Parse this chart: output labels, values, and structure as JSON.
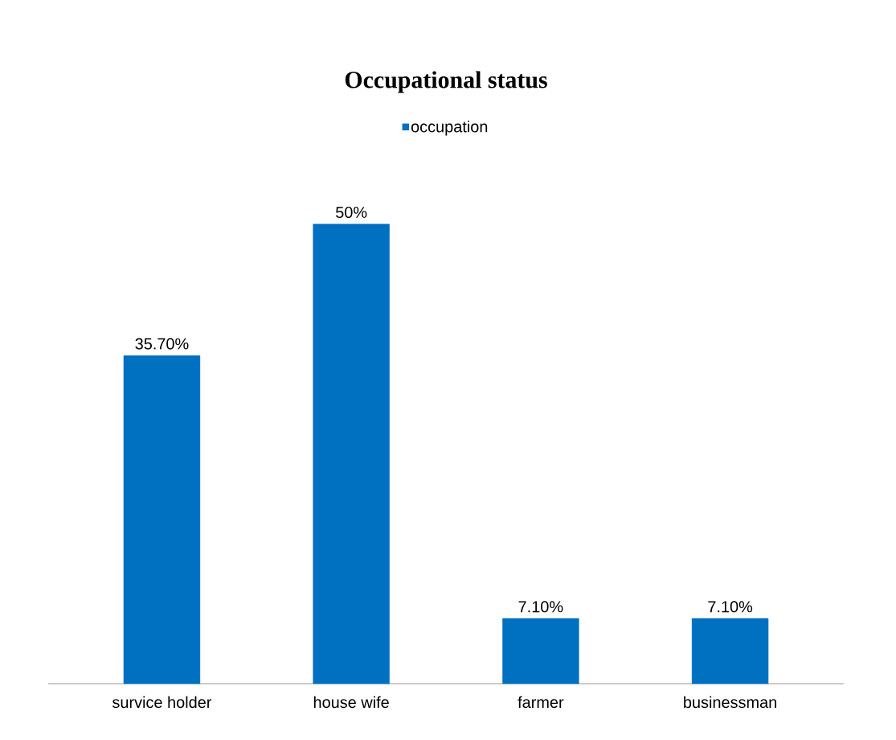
{
  "chart_data": {
    "type": "bar",
    "title": "Occupational status",
    "categories": [
      "survice holder",
      "house wife",
      "farmer",
      "businessman"
    ],
    "series": [
      {
        "name": "occupation",
        "color": "#0070c0",
        "values": [
          35.7,
          50,
          7.1,
          7.1
        ],
        "value_labels": [
          "35.70%",
          "50%",
          "7.10%",
          "7.10%"
        ]
      }
    ],
    "legend": "top"
  }
}
